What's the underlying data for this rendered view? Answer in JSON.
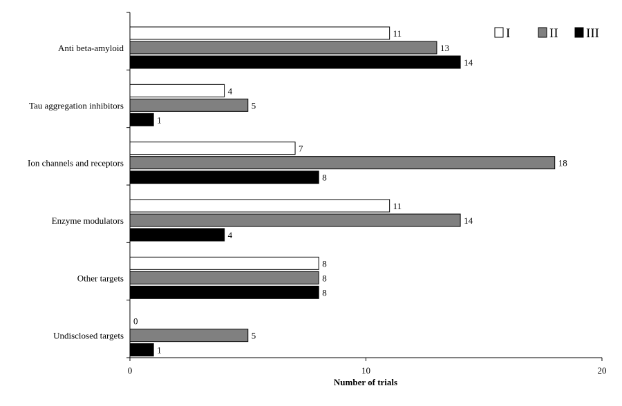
{
  "chart_data": {
    "type": "bar",
    "orientation": "horizontal",
    "title": "",
    "xlabel": "Number of trials",
    "ylabel": "",
    "xlim": [
      0,
      20
    ],
    "xticks": [
      0,
      10,
      20
    ],
    "grid": false,
    "legend_position": "top-right",
    "categories": [
      "Anti beta-amyloid",
      "Tau aggregation inhibitors",
      "Ion channels and receptors",
      "Enzyme modulators",
      "Other targets",
      "Undisclosed targets"
    ],
    "series": [
      {
        "name": "I",
        "color": "#ffffff",
        "values": [
          11,
          4,
          7,
          11,
          8,
          0
        ]
      },
      {
        "name": "II",
        "color": "#808080",
        "values": [
          13,
          5,
          18,
          14,
          8,
          5
        ]
      },
      {
        "name": "III",
        "color": "#000000",
        "values": [
          14,
          1,
          8,
          4,
          8,
          1
        ]
      }
    ]
  }
}
